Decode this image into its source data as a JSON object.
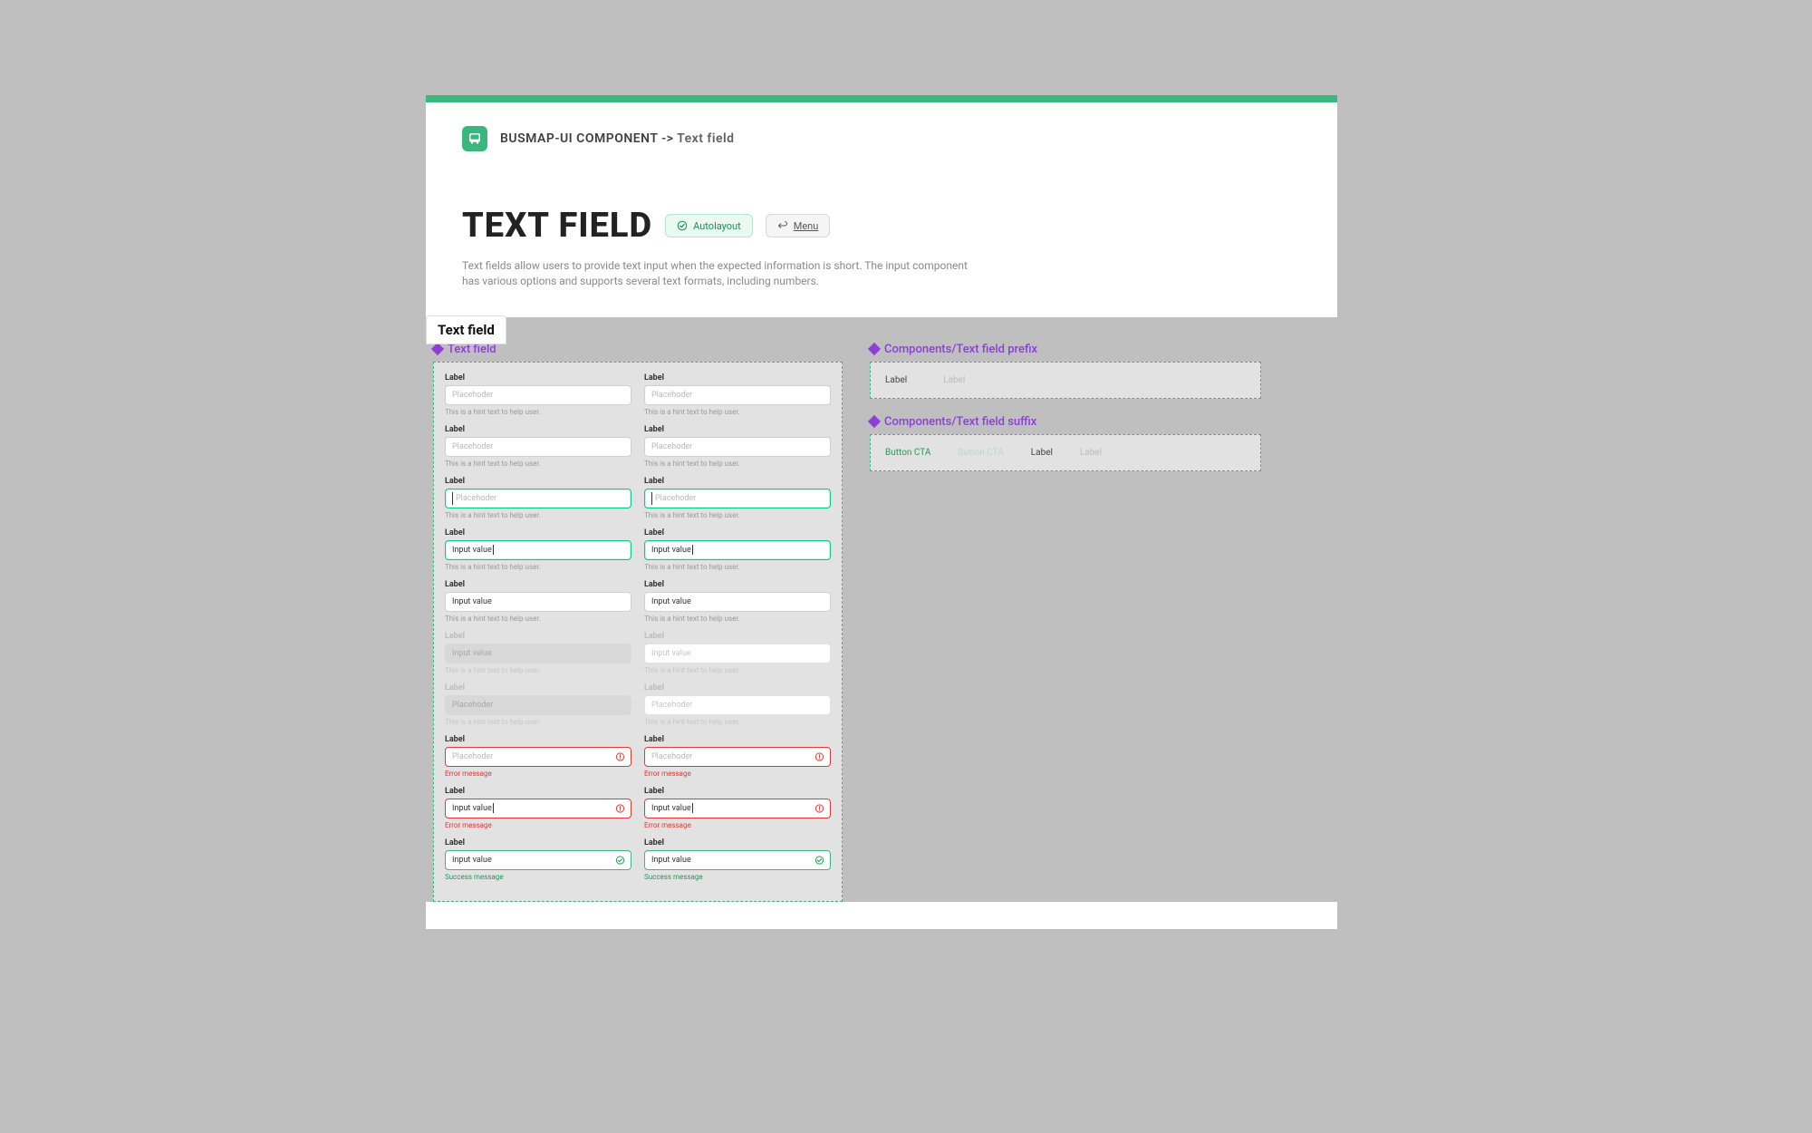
{
  "colors": {
    "brand": "#3bb77e",
    "purple": "#8b3fd4",
    "error": "#e53935",
    "success": "#1a9e57",
    "page_bg": "#bfbfbf"
  },
  "breadcrumb": {
    "seg1": "BUSMAP-UI COMPONENT",
    "arrow": "->",
    "seg2": "Text field"
  },
  "title": {
    "text": "TEXT FIELD",
    "badge_autolayout": "Autolayout",
    "badge_menu": "Menu",
    "description": "Text fields allow users to provide text input when the expected information is short. The input component has various options and supports several text formats, including numbers."
  },
  "frame_tab": "Text field",
  "section_textfield": {
    "title": "Text field",
    "fields": [
      {
        "label": "Label",
        "placeholder": "Placehoder",
        "hint": "This is a hint text to help user.",
        "state": "default",
        "row": 0
      },
      {
        "label": "Label",
        "placeholder": "Placehoder",
        "hint": "This is a hint text to help user.",
        "state": "default",
        "row": 0
      },
      {
        "label": "Label",
        "placeholder": "Placehoder",
        "hint": "This is a hint text to help user.",
        "state": "default",
        "row": 1
      },
      {
        "label": "Label",
        "placeholder": "Placehoder",
        "hint": "This is a hint text to help user.",
        "state": "default",
        "row": 1
      },
      {
        "label": "Label",
        "placeholder": "Placehoder",
        "hint": "This is a hint text to help user.",
        "state": "focused_empty",
        "row": 2
      },
      {
        "label": "Label",
        "placeholder": "Placehoder",
        "hint": "This is a hint text to help user.",
        "state": "focused_empty",
        "row": 2
      },
      {
        "label": "Label",
        "value": "Input value",
        "hint": "This is a hint text to help user.",
        "state": "focused_value",
        "row": 3
      },
      {
        "label": "Label",
        "value": "Input value",
        "hint": "This is a hint text to help user.",
        "state": "focused_value",
        "row": 3
      },
      {
        "label": "Label",
        "value": "Input value",
        "hint": "This is a hint text to help user.",
        "state": "filled",
        "row": 4
      },
      {
        "label": "Label",
        "value": "Input value",
        "hint": "This is a hint text to help user.",
        "state": "filled",
        "row": 4
      },
      {
        "label": "Label",
        "value": "Input value",
        "hint": "This is a hint text to help user.",
        "state": "disabled",
        "row": 5
      },
      {
        "label": "Label",
        "value": "Input value",
        "hint": "This is a hint text to help user.",
        "state": "readonly_dim",
        "row": 5
      },
      {
        "label": "Label",
        "placeholder": "Placehoder",
        "hint": "This is a hint text to help user.",
        "state": "disabled",
        "row": 6
      },
      {
        "label": "Label",
        "placeholder": "Placehoder",
        "hint": "This is a hint text to help user.",
        "state": "readonly_dim",
        "row": 6
      },
      {
        "label": "Label",
        "placeholder": "Placehoder",
        "hint": "Error message",
        "state": "error",
        "row": 7
      },
      {
        "label": "Label",
        "placeholder": "Placehoder",
        "hint": "Error message",
        "state": "error",
        "row": 7
      },
      {
        "label": "Label",
        "value": "Input value",
        "hint": "Error message",
        "state": "error_value",
        "row": 8
      },
      {
        "label": "Label",
        "value": "Input value",
        "hint": "Error message",
        "state": "error_value",
        "row": 8
      },
      {
        "label": "Label",
        "value": "Input value",
        "hint": "Success message",
        "state": "success",
        "row": 9
      },
      {
        "label": "Label",
        "value": "Input value",
        "hint": "Success message",
        "state": "success",
        "row": 9
      }
    ]
  },
  "section_prefix": {
    "title": "Components/Text field prefix",
    "items": {
      "col1": "Label",
      "col2": "Label"
    }
  },
  "section_suffix": {
    "title": "Components/Text field suffix",
    "items": {
      "cta1": "Button CTA",
      "cta2": "Button CTA",
      "lab1": "Label",
      "lab2": "Label"
    }
  }
}
